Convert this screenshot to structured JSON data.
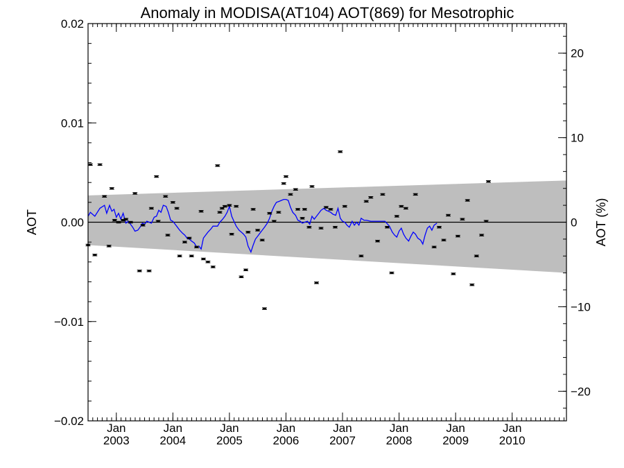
{
  "chart_data": {
    "type": "scatter",
    "title": "Anomaly in MODISA(AT104) AOT(869) for Mesotrophic",
    "ylabel": "AOT",
    "y2label": "AOT (%)",
    "xlabel": "",
    "xlim": [
      2002.5,
      2010.96
    ],
    "ylim": [
      -0.02,
      0.02
    ],
    "y2lim": [
      -23.5,
      23.5
    ],
    "y_ticks": [
      -0.02,
      -0.01,
      0.0,
      0.01,
      0.02
    ],
    "y_tick_labels": [
      "−0.02",
      "−0.01",
      "0.00",
      "0.01",
      "0.02"
    ],
    "y2_ticks": [
      -20,
      -10,
      0,
      10,
      20
    ],
    "y2_tick_labels": [
      "−20",
      "−10",
      "0",
      "10",
      "20"
    ],
    "x_ticks": [
      {
        "x": 2003.0,
        "month": "Jan",
        "year": "2003"
      },
      {
        "x": 2004.0,
        "month": "Jan",
        "year": "2004"
      },
      {
        "x": 2005.0,
        "month": "Jan",
        "year": "2005"
      },
      {
        "x": 2006.0,
        "month": "Jan",
        "year": "2006"
      },
      {
        "x": 2007.0,
        "month": "Jan",
        "year": "2007"
      },
      {
        "x": 2008.0,
        "month": "Jan",
        "year": "2008"
      },
      {
        "x": 2009.0,
        "month": "Jan",
        "year": "2009"
      },
      {
        "x": 2010.0,
        "month": "Jan",
        "year": "2010"
      }
    ],
    "zero_line": 0.0,
    "band": {
      "color": "#bebebe",
      "x": [
        2002.5,
        2010.96
      ],
      "upper": [
        0.0027,
        0.0042
      ],
      "lower": [
        -0.0023,
        -0.0051
      ]
    },
    "points_color": "#000000",
    "line_color": "#0000ff",
    "points": [
      {
        "x": 2002.5,
        "y": -0.0023
      },
      {
        "x": 2002.54,
        "y": 0.0058
      },
      {
        "x": 2002.62,
        "y": -0.0033
      },
      {
        "x": 2002.71,
        "y": 0.0058
      },
      {
        "x": 2002.79,
        "y": 0.0026
      },
      {
        "x": 2002.87,
        "y": -0.0024
      },
      {
        "x": 2002.92,
        "y": 0.0034
      },
      {
        "x": 2002.97,
        "y": 0.0002
      },
      {
        "x": 2003.04,
        "y": 0.0
      },
      {
        "x": 2003.12,
        "y": 0.0002
      },
      {
        "x": 2003.17,
        "y": 0.0003
      },
      {
        "x": 2003.25,
        "y": 0.0
      },
      {
        "x": 2003.33,
        "y": 0.0029
      },
      {
        "x": 2003.41,
        "y": -0.0049
      },
      {
        "x": 2003.47,
        "y": -0.0003
      },
      {
        "x": 2003.58,
        "y": -0.0049
      },
      {
        "x": 2003.62,
        "y": 0.0014
      },
      {
        "x": 2003.71,
        "y": 0.0046
      },
      {
        "x": 2003.74,
        "y": 0.0001
      },
      {
        "x": 2003.87,
        "y": 0.0026
      },
      {
        "x": 2003.91,
        "y": -0.0013
      },
      {
        "x": 2004.0,
        "y": 0.002
      },
      {
        "x": 2004.07,
        "y": 0.0014
      },
      {
        "x": 2004.12,
        "y": -0.0034
      },
      {
        "x": 2004.21,
        "y": -0.002
      },
      {
        "x": 2004.29,
        "y": -0.0016
      },
      {
        "x": 2004.33,
        "y": -0.0034
      },
      {
        "x": 2004.42,
        "y": -0.0025
      },
      {
        "x": 2004.5,
        "y": 0.0011
      },
      {
        "x": 2004.54,
        "y": -0.0037
      },
      {
        "x": 2004.62,
        "y": -0.004
      },
      {
        "x": 2004.71,
        "y": -0.0045
      },
      {
        "x": 2004.79,
        "y": 0.0057
      },
      {
        "x": 2004.83,
        "y": 0.001
      },
      {
        "x": 2004.87,
        "y": 0.0014
      },
      {
        "x": 2004.92,
        "y": 0.0016
      },
      {
        "x": 2005.0,
        "y": 0.0017
      },
      {
        "x": 2005.04,
        "y": -0.0012
      },
      {
        "x": 2005.12,
        "y": 0.0016
      },
      {
        "x": 2005.21,
        "y": -0.0055
      },
      {
        "x": 2005.29,
        "y": -0.0048
      },
      {
        "x": 2005.33,
        "y": -0.001
      },
      {
        "x": 2005.42,
        "y": 0.0013
      },
      {
        "x": 2005.5,
        "y": -0.0008
      },
      {
        "x": 2005.58,
        "y": -0.0018
      },
      {
        "x": 2005.62,
        "y": -0.0087
      },
      {
        "x": 2005.71,
        "y": 0.0009
      },
      {
        "x": 2005.79,
        "y": 0.0001
      },
      {
        "x": 2005.87,
        "y": 0.001
      },
      {
        "x": 2005.96,
        "y": 0.0039
      },
      {
        "x": 2006.0,
        "y": 0.0046
      },
      {
        "x": 2006.08,
        "y": 0.0028
      },
      {
        "x": 2006.17,
        "y": 0.0033
      },
      {
        "x": 2006.21,
        "y": 0.0013
      },
      {
        "x": 2006.29,
        "y": 0.0004
      },
      {
        "x": 2006.33,
        "y": 0.0013
      },
      {
        "x": 2006.41,
        "y": -0.0005
      },
      {
        "x": 2006.46,
        "y": 0.0036
      },
      {
        "x": 2006.54,
        "y": -0.0061
      },
      {
        "x": 2006.62,
        "y": -0.0006
      },
      {
        "x": 2006.71,
        "y": 0.0015
      },
      {
        "x": 2006.79,
        "y": 0.0013
      },
      {
        "x": 2006.87,
        "y": -0.0005
      },
      {
        "x": 2006.96,
        "y": 0.0071
      },
      {
        "x": 2007.04,
        "y": 0.0016
      },
      {
        "x": 2007.33,
        "y": -0.0034
      },
      {
        "x": 2007.42,
        "y": 0.0021
      },
      {
        "x": 2007.5,
        "y": 0.0025
      },
      {
        "x": 2007.62,
        "y": -0.0019
      },
      {
        "x": 2007.71,
        "y": 0.0028
      },
      {
        "x": 2007.79,
        "y": -0.0005
      },
      {
        "x": 2007.87,
        "y": -0.0051
      },
      {
        "x": 2007.96,
        "y": 0.0006
      },
      {
        "x": 2008.04,
        "y": 0.0016
      },
      {
        "x": 2008.12,
        "y": 0.0014
      },
      {
        "x": 2008.29,
        "y": 0.0028
      },
      {
        "x": 2008.62,
        "y": -0.0025
      },
      {
        "x": 2008.71,
        "y": -0.0005
      },
      {
        "x": 2008.79,
        "y": -0.0018
      },
      {
        "x": 2008.87,
        "y": 0.0007
      },
      {
        "x": 2008.96,
        "y": -0.0052
      },
      {
        "x": 2009.04,
        "y": -0.0014
      },
      {
        "x": 2009.12,
        "y": 0.0003
      },
      {
        "x": 2009.21,
        "y": 0.0022
      },
      {
        "x": 2009.29,
        "y": -0.0063
      },
      {
        "x": 2009.37,
        "y": -0.0034
      },
      {
        "x": 2009.46,
        "y": -0.0013
      },
      {
        "x": 2009.54,
        "y": 0.0001
      },
      {
        "x": 2009.58,
        "y": 0.0041
      }
    ],
    "line": [
      {
        "x": 2002.5,
        "y": 0.0006
      },
      {
        "x": 2002.54,
        "y": 0.001
      },
      {
        "x": 2002.62,
        "y": 0.0006
      },
      {
        "x": 2002.71,
        "y": 0.0014
      },
      {
        "x": 2002.79,
        "y": 0.0017
      },
      {
        "x": 2002.83,
        "y": 0.0009
      },
      {
        "x": 2002.88,
        "y": 0.0017
      },
      {
        "x": 2002.92,
        "y": 0.0011
      },
      {
        "x": 2002.96,
        "y": 0.0013
      },
      {
        "x": 2003.0,
        "y": 0.0005
      },
      {
        "x": 2003.04,
        "y": 0.0009
      },
      {
        "x": 2003.08,
        "y": 0.0003
      },
      {
        "x": 2003.12,
        "y": 0.0009
      },
      {
        "x": 2003.17,
        "y": -0.0001
      },
      {
        "x": 2003.21,
        "y": 0.0001
      },
      {
        "x": 2003.25,
        "y": -0.0002
      },
      {
        "x": 2003.29,
        "y": -0.0005
      },
      {
        "x": 2003.33,
        "y": -0.0009
      },
      {
        "x": 2003.38,
        "y": -0.0008
      },
      {
        "x": 2003.42,
        "y": -0.0005
      },
      {
        "x": 2003.46,
        "y": -0.0001
      },
      {
        "x": 2003.5,
        "y": -0.0002
      },
      {
        "x": 2003.54,
        "y": 0.0001
      },
      {
        "x": 2003.58,
        "y": 0.0
      },
      {
        "x": 2003.62,
        "y": -0.0001
      },
      {
        "x": 2003.67,
        "y": 0.0005
      },
      {
        "x": 2003.71,
        "y": 0.0006
      },
      {
        "x": 2003.75,
        "y": 0.0012
      },
      {
        "x": 2003.79,
        "y": 0.001
      },
      {
        "x": 2003.83,
        "y": 0.0017
      },
      {
        "x": 2003.88,
        "y": 0.0016
      },
      {
        "x": 2003.92,
        "y": 0.001
      },
      {
        "x": 2003.96,
        "y": 0.0002
      },
      {
        "x": 2004.0,
        "y": 0.0001
      },
      {
        "x": 2004.04,
        "y": -0.0002
      },
      {
        "x": 2004.08,
        "y": -0.0005
      },
      {
        "x": 2004.12,
        "y": -0.0008
      },
      {
        "x": 2004.17,
        "y": -0.0011
      },
      {
        "x": 2004.21,
        "y": -0.0013
      },
      {
        "x": 2004.25,
        "y": -0.0016
      },
      {
        "x": 2004.29,
        "y": -0.0017
      },
      {
        "x": 2004.33,
        "y": -0.0019
      },
      {
        "x": 2004.38,
        "y": -0.0021
      },
      {
        "x": 2004.42,
        "y": -0.0025
      },
      {
        "x": 2004.46,
        "y": -0.0024
      },
      {
        "x": 2004.5,
        "y": -0.0027
      },
      {
        "x": 2004.54,
        "y": -0.0016
      },
      {
        "x": 2004.58,
        "y": -0.0013
      },
      {
        "x": 2004.62,
        "y": -0.001
      },
      {
        "x": 2004.67,
        "y": -0.0007
      },
      {
        "x": 2004.71,
        "y": -0.0004
      },
      {
        "x": 2004.75,
        "y": -0.0004
      },
      {
        "x": 2004.79,
        "y": -0.0004
      },
      {
        "x": 2004.83,
        "y": 0.0
      },
      {
        "x": 2004.88,
        "y": 0.0003
      },
      {
        "x": 2004.92,
        "y": 0.0006
      },
      {
        "x": 2004.96,
        "y": 0.001
      },
      {
        "x": 2005.0,
        "y": 0.0016
      },
      {
        "x": 2005.04,
        "y": 0.0006
      },
      {
        "x": 2005.08,
        "y": 0.0001
      },
      {
        "x": 2005.12,
        "y": -0.0004
      },
      {
        "x": 2005.17,
        "y": -0.0008
      },
      {
        "x": 2005.21,
        "y": -0.001
      },
      {
        "x": 2005.25,
        "y": -0.0012
      },
      {
        "x": 2005.29,
        "y": -0.0015
      },
      {
        "x": 2005.33,
        "y": -0.0024
      },
      {
        "x": 2005.38,
        "y": -0.003
      },
      {
        "x": 2005.42,
        "y": -0.0023
      },
      {
        "x": 2005.46,
        "y": -0.0017
      },
      {
        "x": 2005.5,
        "y": -0.0014
      },
      {
        "x": 2005.54,
        "y": -0.0011
      },
      {
        "x": 2005.58,
        "y": -0.0008
      },
      {
        "x": 2005.62,
        "y": -0.0005
      },
      {
        "x": 2005.67,
        "y": -0.0001
      },
      {
        "x": 2005.71,
        "y": 0.0004
      },
      {
        "x": 2005.75,
        "y": 0.0011
      },
      {
        "x": 2005.79,
        "y": 0.0016
      },
      {
        "x": 2005.83,
        "y": 0.002
      },
      {
        "x": 2005.88,
        "y": 0.0021
      },
      {
        "x": 2005.92,
        "y": 0.0022
      },
      {
        "x": 2005.96,
        "y": 0.0023
      },
      {
        "x": 2006.0,
        "y": 0.0023
      },
      {
        "x": 2006.04,
        "y": 0.0022
      },
      {
        "x": 2006.08,
        "y": 0.0015
      },
      {
        "x": 2006.12,
        "y": 0.001
      },
      {
        "x": 2006.17,
        "y": 0.0007
      },
      {
        "x": 2006.21,
        "y": 0.0002
      },
      {
        "x": 2006.25,
        "y": 0.0001
      },
      {
        "x": 2006.29,
        "y": -0.0001
      },
      {
        "x": 2006.33,
        "y": 0.0
      },
      {
        "x": 2006.38,
        "y": 0.0001
      },
      {
        "x": 2006.42,
        "y": -0.0002
      },
      {
        "x": 2006.46,
        "y": 0.0006
      },
      {
        "x": 2006.5,
        "y": 0.0003
      },
      {
        "x": 2006.54,
        "y": 0.0006
      },
      {
        "x": 2006.58,
        "y": 0.0009
      },
      {
        "x": 2006.62,
        "y": 0.0012
      },
      {
        "x": 2006.67,
        "y": 0.0014
      },
      {
        "x": 2006.71,
        "y": 0.0012
      },
      {
        "x": 2006.75,
        "y": 0.0011
      },
      {
        "x": 2006.79,
        "y": 0.001
      },
      {
        "x": 2006.83,
        "y": 0.0008
      },
      {
        "x": 2006.88,
        "y": 0.0007
      },
      {
        "x": 2006.92,
        "y": 0.0014
      },
      {
        "x": 2006.96,
        "y": 0.0004
      },
      {
        "x": 2007.0,
        "y": 0.0001
      },
      {
        "x": 2007.04,
        "y": 0.0
      },
      {
        "x": 2007.08,
        "y": -0.0003
      },
      {
        "x": 2007.12,
        "y": -0.0005
      },
      {
        "x": 2007.17,
        "y": 0.0001
      },
      {
        "x": 2007.21,
        "y": -0.0003
      },
      {
        "x": 2007.25,
        "y": 0.0
      },
      {
        "x": 2007.29,
        "y": -0.0003
      },
      {
        "x": 2007.33,
        "y": 0.0004
      },
      {
        "x": 2007.38,
        "y": 0.0002
      },
      {
        "x": 2007.42,
        "y": 0.0002
      },
      {
        "x": 2007.5,
        "y": 0.0001
      },
      {
        "x": 2007.58,
        "y": 0.0001
      },
      {
        "x": 2007.67,
        "y": 0.0001
      },
      {
        "x": 2007.75,
        "y": 0.0001
      },
      {
        "x": 2007.83,
        "y": -0.0004
      },
      {
        "x": 2007.88,
        "y": -0.001
      },
      {
        "x": 2007.92,
        "y": -0.0013
      },
      {
        "x": 2007.96,
        "y": -0.0015
      },
      {
        "x": 2008.0,
        "y": -0.0009
      },
      {
        "x": 2008.04,
        "y": -0.0006
      },
      {
        "x": 2008.08,
        "y": -0.0012
      },
      {
        "x": 2008.12,
        "y": -0.0016
      },
      {
        "x": 2008.17,
        "y": -0.0019
      },
      {
        "x": 2008.21,
        "y": -0.0014
      },
      {
        "x": 2008.25,
        "y": -0.001
      },
      {
        "x": 2008.29,
        "y": -0.0012
      },
      {
        "x": 2008.33,
        "y": -0.0016
      },
      {
        "x": 2008.38,
        "y": -0.0018
      },
      {
        "x": 2008.42,
        "y": -0.0022
      },
      {
        "x": 2008.46,
        "y": -0.0013
      },
      {
        "x": 2008.5,
        "y": -0.0006
      },
      {
        "x": 2008.54,
        "y": -0.0004
      },
      {
        "x": 2008.58,
        "y": -0.0008
      },
      {
        "x": 2008.62,
        "y": -0.0003
      },
      {
        "x": 2008.67,
        "y": -0.0001
      }
    ]
  }
}
